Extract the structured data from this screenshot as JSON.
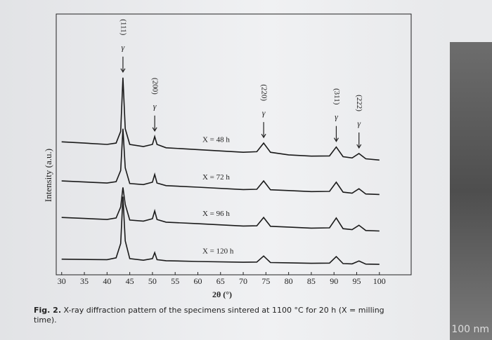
{
  "chart_data": {
    "type": "line",
    "y_label": "Intensity (a.u.)",
    "x_label": "2θ (°)",
    "x": [
      30,
      35,
      40,
      42,
      43,
      43.5,
      44,
      45,
      48,
      50,
      50.5,
      51,
      53,
      60,
      70,
      73,
      74.5,
      76,
      80,
      85,
      89,
      90.5,
      92,
      94,
      95.5,
      97,
      100
    ],
    "series": [
      {
        "name": "X = 48 h",
        "color": "#1a1a1a",
        "values": [
          51,
          50.5,
          50,
          50.5,
          55,
          75.6,
          56,
          50,
          49.2,
          50,
          53,
          50,
          48.7,
          48,
          47,
          47.2,
          50.5,
          47,
          46,
          45.5,
          45.6,
          49,
          45.3,
          44.8,
          46.5,
          44.5,
          44
        ]
      },
      {
        "name": "X = 72 h",
        "color": "#1a1a1a",
        "values": [
          36,
          35.6,
          35.2,
          35.7,
          40,
          56,
          41,
          35,
          34.6,
          35.5,
          38.5,
          35.2,
          34.2,
          33.6,
          32.7,
          32.8,
          36,
          32.6,
          32.3,
          31.9,
          32,
          35.5,
          31.7,
          31.3,
          33,
          31,
          30.8
        ]
      },
      {
        "name": "X = 96 h",
        "color": "#1a1a1a",
        "values": [
          22,
          21.6,
          21.2,
          21.8,
          26,
          33.5,
          27,
          21,
          20.6,
          21.5,
          24.5,
          21.2,
          20.2,
          19.6,
          18.7,
          18.8,
          22,
          18.6,
          18.3,
          17.9,
          18,
          21.8,
          17.7,
          17.3,
          19,
          17,
          16.8
        ]
      },
      {
        "name": "X = 120 h",
        "color": "#1a1a1a",
        "values": [
          6,
          5.9,
          5.8,
          6.5,
          12,
          30,
          13,
          6.2,
          5.6,
          6.2,
          8.5,
          5.8,
          5.4,
          5.1,
          4.8,
          4.9,
          7.2,
          4.7,
          4.6,
          4.4,
          4.5,
          7,
          4.3,
          4.2,
          5.3,
          4.1,
          4
        ]
      }
    ],
    "xlim": [
      28.8,
      107
    ],
    "xticks": [
      30,
      35,
      40,
      45,
      50,
      55,
      60,
      65,
      70,
      75,
      80,
      85,
      90,
      95,
      100
    ],
    "ylim": [
      0,
      100
    ],
    "annotations": [
      {
        "text": "(111)",
        "symbol": "γ",
        "x": 43.5
      },
      {
        "text": "(200)",
        "symbol": "γ",
        "x": 50.5
      },
      {
        "text": "(220)",
        "symbol": "γ",
        "x": 74.5
      },
      {
        "text": "(311)",
        "symbol": "γ",
        "x": 90.5
      },
      {
        "text": "(222)",
        "symbol": "γ",
        "x": 95.5
      }
    ]
  },
  "caption": {
    "label": "Fig. 2.",
    "text": "X-ray diffraction pattern of the specimens sintered at 1100 °C for 20 h (X = milling time)."
  },
  "photo_overlay": "100 nm"
}
